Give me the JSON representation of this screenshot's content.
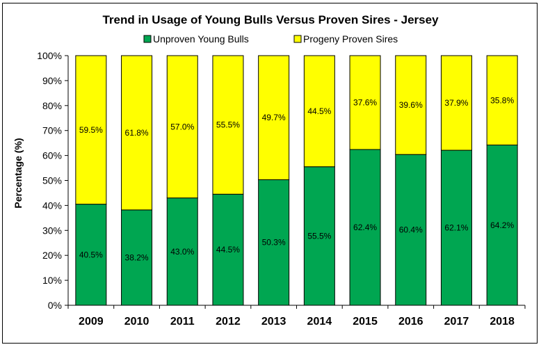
{
  "chart_data": {
    "type": "bar",
    "stacked": true,
    "title": "Trend in Usage of Young Bulls Versus Proven Sires - Jersey",
    "xlabel": "",
    "ylabel": "Percentage (%)",
    "ylim": [
      0,
      100
    ],
    "yticks": [
      "0%",
      "10%",
      "20%",
      "30%",
      "40%",
      "50%",
      "60%",
      "70%",
      "80%",
      "90%",
      "100%"
    ],
    "categories": [
      "2009",
      "2010",
      "2011",
      "2012",
      "2013",
      "2014",
      "2015",
      "2016",
      "2017",
      "2018"
    ],
    "legend_position": "top",
    "grid": false,
    "series": [
      {
        "name": "Unproven Young Bulls",
        "color": "#00a651",
        "values": [
          40.5,
          38.2,
          43.0,
          44.5,
          50.3,
          55.5,
          62.4,
          60.4,
          62.1,
          64.2
        ],
        "labels": [
          "40.5%",
          "38.2%",
          "43.0%",
          "44.5%",
          "50.3%",
          "55.5%",
          "62.4%",
          "60.4%",
          "62.1%",
          "64.2%"
        ]
      },
      {
        "name": "Progeny Proven Sires",
        "color": "#ffff00",
        "values": [
          59.5,
          61.8,
          57.0,
          55.5,
          49.7,
          44.5,
          37.6,
          39.6,
          37.9,
          35.8
        ],
        "labels": [
          "59.5%",
          "61.8%",
          "57.0%",
          "55.5%",
          "49.7%",
          "44.5%",
          "37.6%",
          "39.6%",
          "37.9%",
          "35.8%"
        ]
      }
    ]
  }
}
